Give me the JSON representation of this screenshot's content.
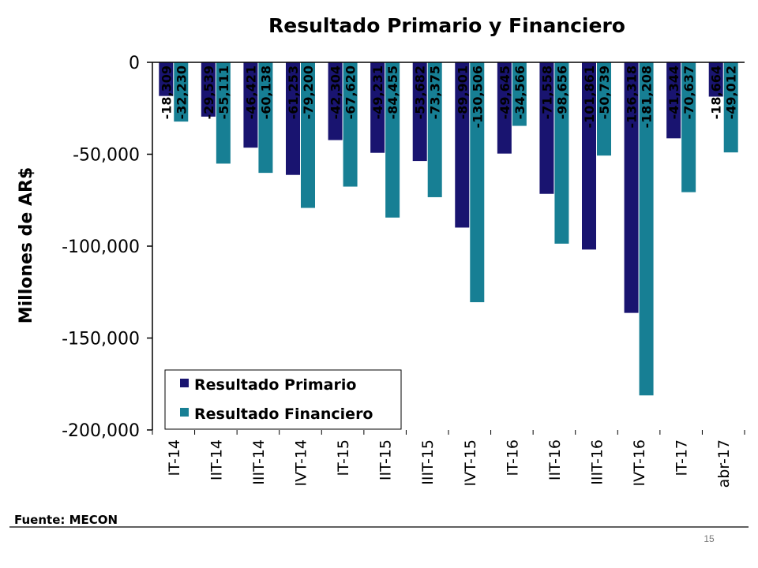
{
  "colors": {
    "primario": "#191470",
    "financiero": "#177f94",
    "axis": "#000000"
  },
  "source": "Fuente: MECON",
  "page_number": "15",
  "chart_data": {
    "type": "bar",
    "title": "Resultado Primario y Financiero",
    "xlabel": "",
    "ylabel": "Millones de AR$",
    "ylim": [
      -200000,
      0
    ],
    "yticks": [
      0,
      -50000,
      -100000,
      -150000,
      -200000
    ],
    "ytick_labels": [
      "0",
      "-50,000",
      "-100,000",
      "-150,000",
      "-200,000"
    ],
    "grid": false,
    "legend_position": "bottom-left",
    "categories": [
      "IT-14",
      "IIT-14",
      "IIIT-14",
      "IVT-14",
      "IT-15",
      "IIT-15",
      "IIIT-15",
      "IVT-15",
      "IT-16",
      "IIT-16",
      "IIIT-16",
      "IVT-16",
      "IT-17",
      "abr-17"
    ],
    "series": [
      {
        "name": "Resultado Primario",
        "values": [
          -18309,
          -29539,
          -46421,
          -61253,
          -42304,
          -49231,
          -53682,
          -89901,
          -49645,
          -71558,
          -101861,
          -136318,
          -41344,
          -18664
        ],
        "labels": [
          "-18,309",
          "-29,539",
          "-46,421",
          "-61,253",
          "-42,304",
          "-49,231",
          "-53,682",
          "-89,901",
          "-49,645",
          "-71,558",
          "-101,861",
          "-136,318",
          "-41,344",
          "-18,664"
        ]
      },
      {
        "name": "Resultado Financiero",
        "values": [
          -32230,
          -55111,
          -60138,
          -79200,
          -67620,
          -84455,
          -73375,
          -130506,
          -34566,
          -98656,
          -50739,
          -181208,
          -70637,
          -49012
        ],
        "labels": [
          "-32,230",
          "-55,111",
          "-60,138",
          "-79,200",
          "-67,620",
          "-84,455",
          "-73,375",
          "-130,506",
          "-34,566",
          "-98,656",
          "-50,739",
          "-181,208",
          "-70,637",
          "-49,012"
        ]
      }
    ]
  }
}
